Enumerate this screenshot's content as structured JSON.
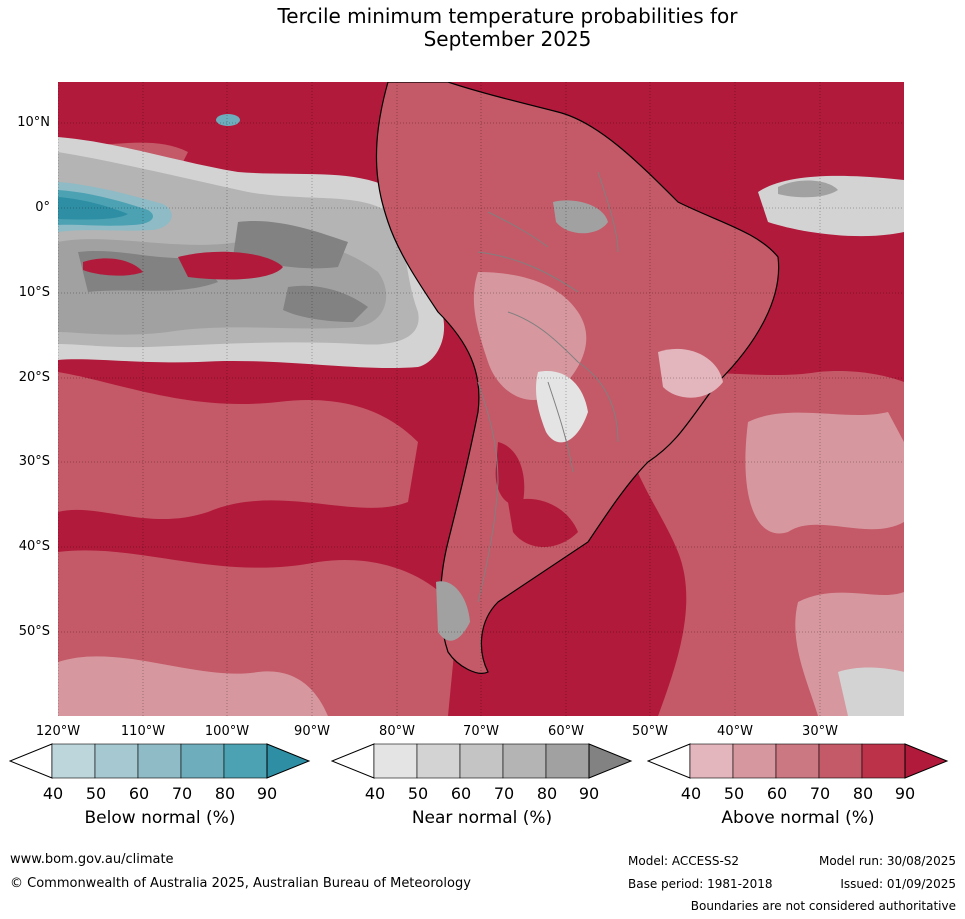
{
  "title_line1": "Tercile minimum temperature probabilities for",
  "title_line2": "September 2025",
  "lat_labels": [
    "10°N",
    "0°",
    "10°S",
    "20°S",
    "30°S",
    "40°S",
    "50°S"
  ],
  "lon_labels": [
    "120°W",
    "110°W",
    "100°W",
    "90°W",
    "80°W",
    "70°W",
    "60°W",
    "50°W",
    "40°W",
    "30°W"
  ],
  "legends": [
    {
      "title": "Below normal (%)",
      "ticks": [
        "40",
        "50",
        "60",
        "70",
        "80",
        "90"
      ],
      "colors": [
        "#bdd6dc",
        "#a6c9d1",
        "#8ebbc5",
        "#6eaebc",
        "#4ca2b3",
        "#2e8ea3"
      ]
    },
    {
      "title": "Near normal (%)",
      "ticks": [
        "40",
        "50",
        "60",
        "70",
        "80",
        "90"
      ],
      "colors": [
        "#e4e4e4",
        "#d3d3d3",
        "#c4c4c4",
        "#b4b4b4",
        "#a1a1a1",
        "#828282"
      ]
    },
    {
      "title": "Above normal (%)",
      "ticks": [
        "40",
        "50",
        "60",
        "70",
        "80",
        "90"
      ],
      "colors": [
        "#e3b5bc",
        "#d6979f",
        "#cc7883",
        "#c45967",
        "#bb3249",
        "#b11a3b"
      ]
    }
  ],
  "footer": {
    "website": "www.bom.gov.au/climate",
    "copyright": "© Commonwealth of Australia 2025, Australian Bureau of Meteorology",
    "model": "Model: ACCESS-S2",
    "base_period": "Base period: 1981-2018",
    "model_run": "Model run: 30/08/2025",
    "issued": "Issued: 01/09/2025",
    "disclaimer": "Boundaries are not considered authoritative"
  },
  "colors": {
    "above_dominant": "#b11a3b",
    "above_mid": "#c45967",
    "above_light": "#d6979f",
    "near_light": "#d3d3d3",
    "near_mid": "#a1a1a1",
    "near_dark": "#828282",
    "below_mid": "#6eaebc",
    "below_dark": "#2e8ea3"
  }
}
